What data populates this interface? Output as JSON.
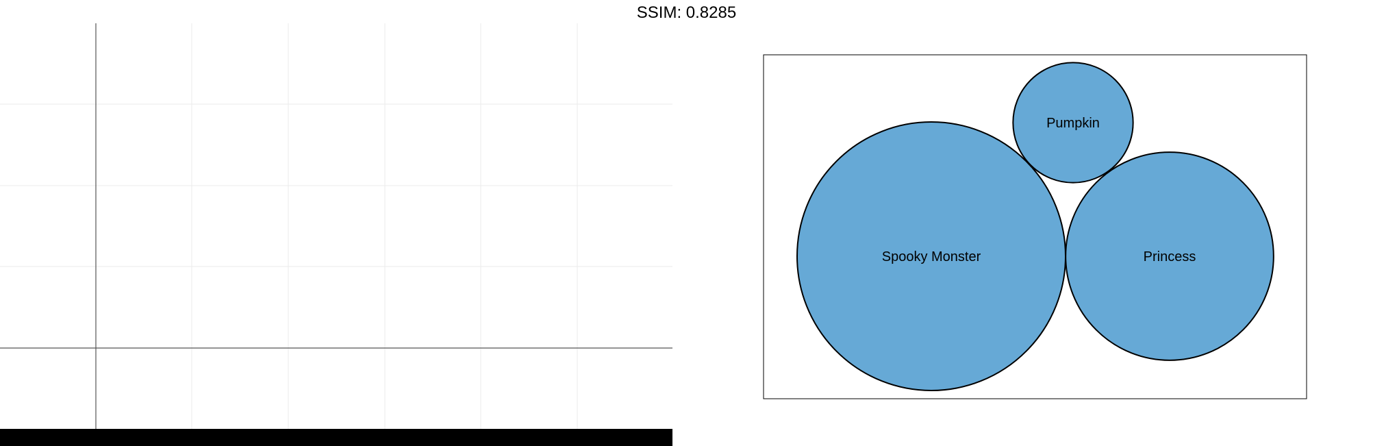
{
  "figure": {
    "title": "SSIM: 0.8285"
  },
  "colors": {
    "bubble_fill": "#66a9d6",
    "bubble_stroke": "#000000",
    "grid": "#ebebeb",
    "axis": "#555555",
    "bottom_band": "#000000"
  },
  "chart_data": [
    {
      "type": "scatter",
      "title": "",
      "xlabel": "",
      "ylabel": "",
      "x": [],
      "y": [],
      "grid": true,
      "legend": "none"
    },
    {
      "type": "bubble",
      "title": "",
      "bubbles": [
        {
          "label": "Spooky Monster",
          "value": 100
        },
        {
          "label": "Pumpkin",
          "value": 20
        },
        {
          "label": "Princess",
          "value": 60
        }
      ],
      "legend": "none"
    }
  ]
}
